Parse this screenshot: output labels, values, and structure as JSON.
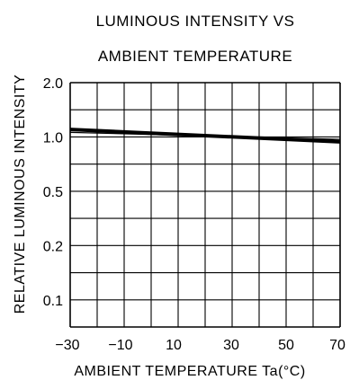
{
  "chart_data": {
    "type": "line",
    "title_lines": [
      "LUMINOUS  INTENSITY VS",
      "AMBIENT  TEMPERATURE"
    ],
    "xlabel": "AMBIENT  TEMPERATURE  Ta(°C)",
    "ylabel": "RELATIVE  LUMINOUS  INTENSITY",
    "x_tick_labels": [
      "−30",
      "−10",
      "10",
      "30",
      "50",
      "70"
    ],
    "x_ticks": [
      -30,
      -10,
      10,
      30,
      50,
      70
    ],
    "xlim": [
      -30,
      70
    ],
    "y_scale": "log",
    "y_tick_labels": [
      "2.0",
      "1.0",
      "0.5",
      "0.2",
      "0.1"
    ],
    "y_ticks": [
      2.0,
      1.0,
      0.5,
      0.2,
      0.1
    ],
    "grid": true,
    "reference_line": {
      "x": [
        -30,
        70
      ],
      "y": [
        1.06,
        0.97
      ]
    },
    "series": [
      {
        "x": [
          -30,
          70
        ],
        "y": [
          1.1,
          0.94
        ]
      }
    ]
  },
  "colors": {
    "line": "#000000",
    "grid": "#000000",
    "background": "#ffffff"
  }
}
